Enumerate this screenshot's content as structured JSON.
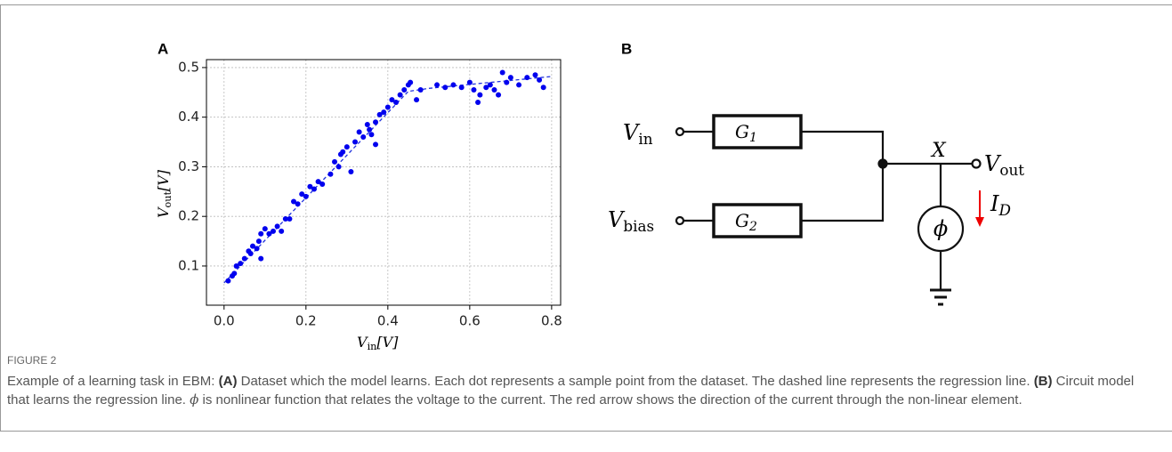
{
  "panels": {
    "a": "A",
    "b": "B"
  },
  "chart_data": {
    "type": "scatter",
    "xlabel": {
      "symbol": "V",
      "subscript": "in",
      "unit": "[V]"
    },
    "ylabel": {
      "symbol": "V",
      "subscript": "out",
      "unit": "[V]"
    },
    "xlim": [
      -0.043,
      0.822
    ],
    "ylim": [
      0.021,
      0.516
    ],
    "xticks": [
      {
        "value": 0,
        "label": "0.0"
      },
      0.2,
      0.4,
      0.6,
      0.8
    ],
    "yticks": [
      0.1,
      0.2,
      0.3,
      0.4,
      0.5
    ],
    "grid": true,
    "series": [
      {
        "kind": "points",
        "color": "#0000ee",
        "x": [
          0.01,
          0.02,
          0.025,
          0.03,
          0.04,
          0.05,
          0.06,
          0.065,
          0.07,
          0.08,
          0.085,
          0.09,
          0.09,
          0.1,
          0.11,
          0.12,
          0.13,
          0.14,
          0.15,
          0.16,
          0.17,
          0.18,
          0.19,
          0.2,
          0.21,
          0.22,
          0.23,
          0.24,
          0.26,
          0.27,
          0.28,
          0.285,
          0.29,
          0.3,
          0.31,
          0.32,
          0.33,
          0.34,
          0.35,
          0.355,
          0.36,
          0.37,
          0.37,
          0.38,
          0.39,
          0.4,
          0.41,
          0.42,
          0.43,
          0.44,
          0.45,
          0.455,
          0.47,
          0.48,
          0.52,
          0.54,
          0.56,
          0.58,
          0.6,
          0.61,
          0.62,
          0.625,
          0.64,
          0.65,
          0.66,
          0.67,
          0.68,
          0.69,
          0.7,
          0.72,
          0.74,
          0.76,
          0.77,
          0.78
        ],
        "values": [
          0.07,
          0.08,
          0.085,
          0.1,
          0.105,
          0.115,
          0.13,
          0.125,
          0.14,
          0.135,
          0.15,
          0.115,
          0.165,
          0.175,
          0.165,
          0.17,
          0.18,
          0.17,
          0.195,
          0.195,
          0.23,
          0.225,
          0.245,
          0.24,
          0.26,
          0.255,
          0.27,
          0.265,
          0.285,
          0.31,
          0.3,
          0.325,
          0.33,
          0.34,
          0.29,
          0.35,
          0.37,
          0.36,
          0.385,
          0.375,
          0.365,
          0.39,
          0.345,
          0.405,
          0.41,
          0.42,
          0.435,
          0.43,
          0.445,
          0.455,
          0.465,
          0.47,
          0.435,
          0.455,
          0.465,
          0.46,
          0.465,
          0.46,
          0.47,
          0.455,
          0.43,
          0.445,
          0.46,
          0.465,
          0.455,
          0.445,
          0.49,
          0.47,
          0.48,
          0.465,
          0.48,
          0.485,
          0.475,
          0.46
        ]
      },
      {
        "kind": "dashed-line",
        "color": "#2233dd",
        "x": [
          0,
          0.45,
          0.5,
          0.6,
          0.7,
          0.8
        ],
        "values": [
          0.066,
          0.452,
          0.458,
          0.466,
          0.474,
          0.482
        ]
      }
    ]
  },
  "diagram": {
    "nodes": [
      {
        "symbol": "V",
        "subscript": "in"
      },
      {
        "symbol": "G",
        "subscript": "1"
      },
      {
        "symbol": "V",
        "subscript": "bias"
      },
      {
        "symbol": "G",
        "subscript": "2"
      },
      {
        "symbol": "X"
      },
      {
        "symbol": "V",
        "subscript": "out"
      },
      {
        "symbol": "I",
        "subscript": "D"
      },
      {
        "symbol": "ϕ"
      }
    ]
  },
  "caption": {
    "label": "FIGURE 2",
    "runs": [
      {
        "text": "Example of a learning task in EBM: "
      },
      {
        "text": "(A)",
        "bold": true
      },
      {
        "text": " Dataset which the model learns. Each dot represents a sample point from the dataset. The dashed line represents the regression line. "
      },
      {
        "text": "(B)",
        "bold": true
      },
      {
        "text": " Circuit model that learns the regression line. "
      },
      {
        "text": "ϕ",
        "italic": true
      },
      {
        "text": " is nonlinear function that relates the voltage to the current. The red arrow shows the direction of the current through the non-linear element."
      }
    ]
  }
}
